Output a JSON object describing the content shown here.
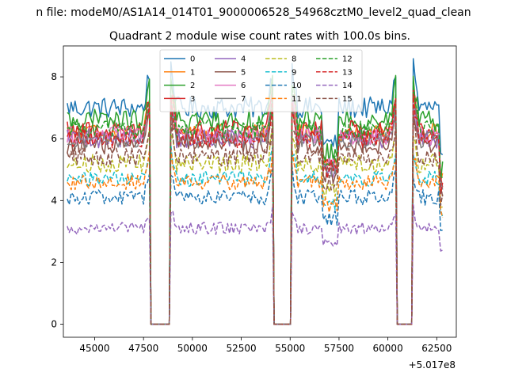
{
  "figure": {
    "suptitle": "n file: modeM0/AS1A14_014T01_9000006528_54968cztM0_level2_quad_clean"
  },
  "chart_data": {
    "type": "line",
    "title": "Quadrant 2 module wise count rates with 100.0s bins.",
    "xlabel": "",
    "ylabel": "",
    "offset_label": "+5.017e8",
    "xlim": [
      43400,
      63500
    ],
    "ylim": [
      -0.42,
      9.0
    ],
    "x_ticks": [
      45000,
      47500,
      50000,
      52500,
      55000,
      57500,
      60000,
      62500
    ],
    "x_tick_labels": [
      "45000",
      "47500",
      "50000",
      "52500",
      "55000",
      "57500",
      "60000",
      "62500"
    ],
    "y_ticks": [
      0,
      2,
      4,
      6,
      8
    ],
    "y_tick_labels": [
      "0",
      "2",
      "4",
      "6",
      "8"
    ],
    "grid": false,
    "legend_placement": "top-center",
    "legend_columns": 4,
    "segments": [
      [
        43600,
        47800
      ],
      [
        48900,
        54100
      ],
      [
        55100,
        60400
      ],
      [
        61300,
        62800
      ]
    ],
    "gaps": [
      [
        47800,
        48900
      ],
      [
        54100,
        55100
      ],
      [
        60400,
        61300
      ]
    ],
    "bin_seconds": 100,
    "series": [
      {
        "name": "0",
        "color": "#1f77b4",
        "dash": "solid",
        "level": 7.0,
        "noise": 0.35
      },
      {
        "name": "1",
        "color": "#ff7f0e",
        "dash": "solid",
        "level": 6.2,
        "noise": 0.3
      },
      {
        "name": "2",
        "color": "#2ca02c",
        "dash": "solid",
        "level": 6.6,
        "noise": 0.35
      },
      {
        "name": "3",
        "color": "#d62728",
        "dash": "solid",
        "level": 6.3,
        "noise": 0.3
      },
      {
        "name": "4",
        "color": "#9467bd",
        "dash": "solid",
        "level": 6.0,
        "noise": 0.3
      },
      {
        "name": "5",
        "color": "#8c564b",
        "dash": "solid",
        "level": 5.8,
        "noise": 0.3
      },
      {
        "name": "6",
        "color": "#e377c2",
        "dash": "solid",
        "level": 6.1,
        "noise": 0.3
      },
      {
        "name": "7",
        "color": "#7f7f7f",
        "dash": "solid",
        "level": 6.0,
        "noise": 0.3
      },
      {
        "name": "8",
        "color": "#bcbd22",
        "dash": "dashed",
        "level": 5.2,
        "noise": 0.3
      },
      {
        "name": "9",
        "color": "#17becf",
        "dash": "dashed",
        "level": 4.7,
        "noise": 0.25
      },
      {
        "name": "10",
        "color": "#1f77b4",
        "dash": "dashed",
        "level": 4.1,
        "noise": 0.25
      },
      {
        "name": "11",
        "color": "#ff7f0e",
        "dash": "dashed",
        "level": 4.6,
        "noise": 0.25
      },
      {
        "name": "12",
        "color": "#2ca02c",
        "dash": "dashed",
        "level": 6.3,
        "noise": 0.3
      },
      {
        "name": "13",
        "color": "#d62728",
        "dash": "dashed",
        "level": 6.0,
        "noise": 0.3
      },
      {
        "name": "14",
        "color": "#9467bd",
        "dash": "dashed",
        "level": 3.1,
        "noise": 0.2
      },
      {
        "name": "15",
        "color": "#8c564b",
        "dash": "dashed",
        "level": 5.4,
        "noise": 0.3
      }
    ]
  }
}
